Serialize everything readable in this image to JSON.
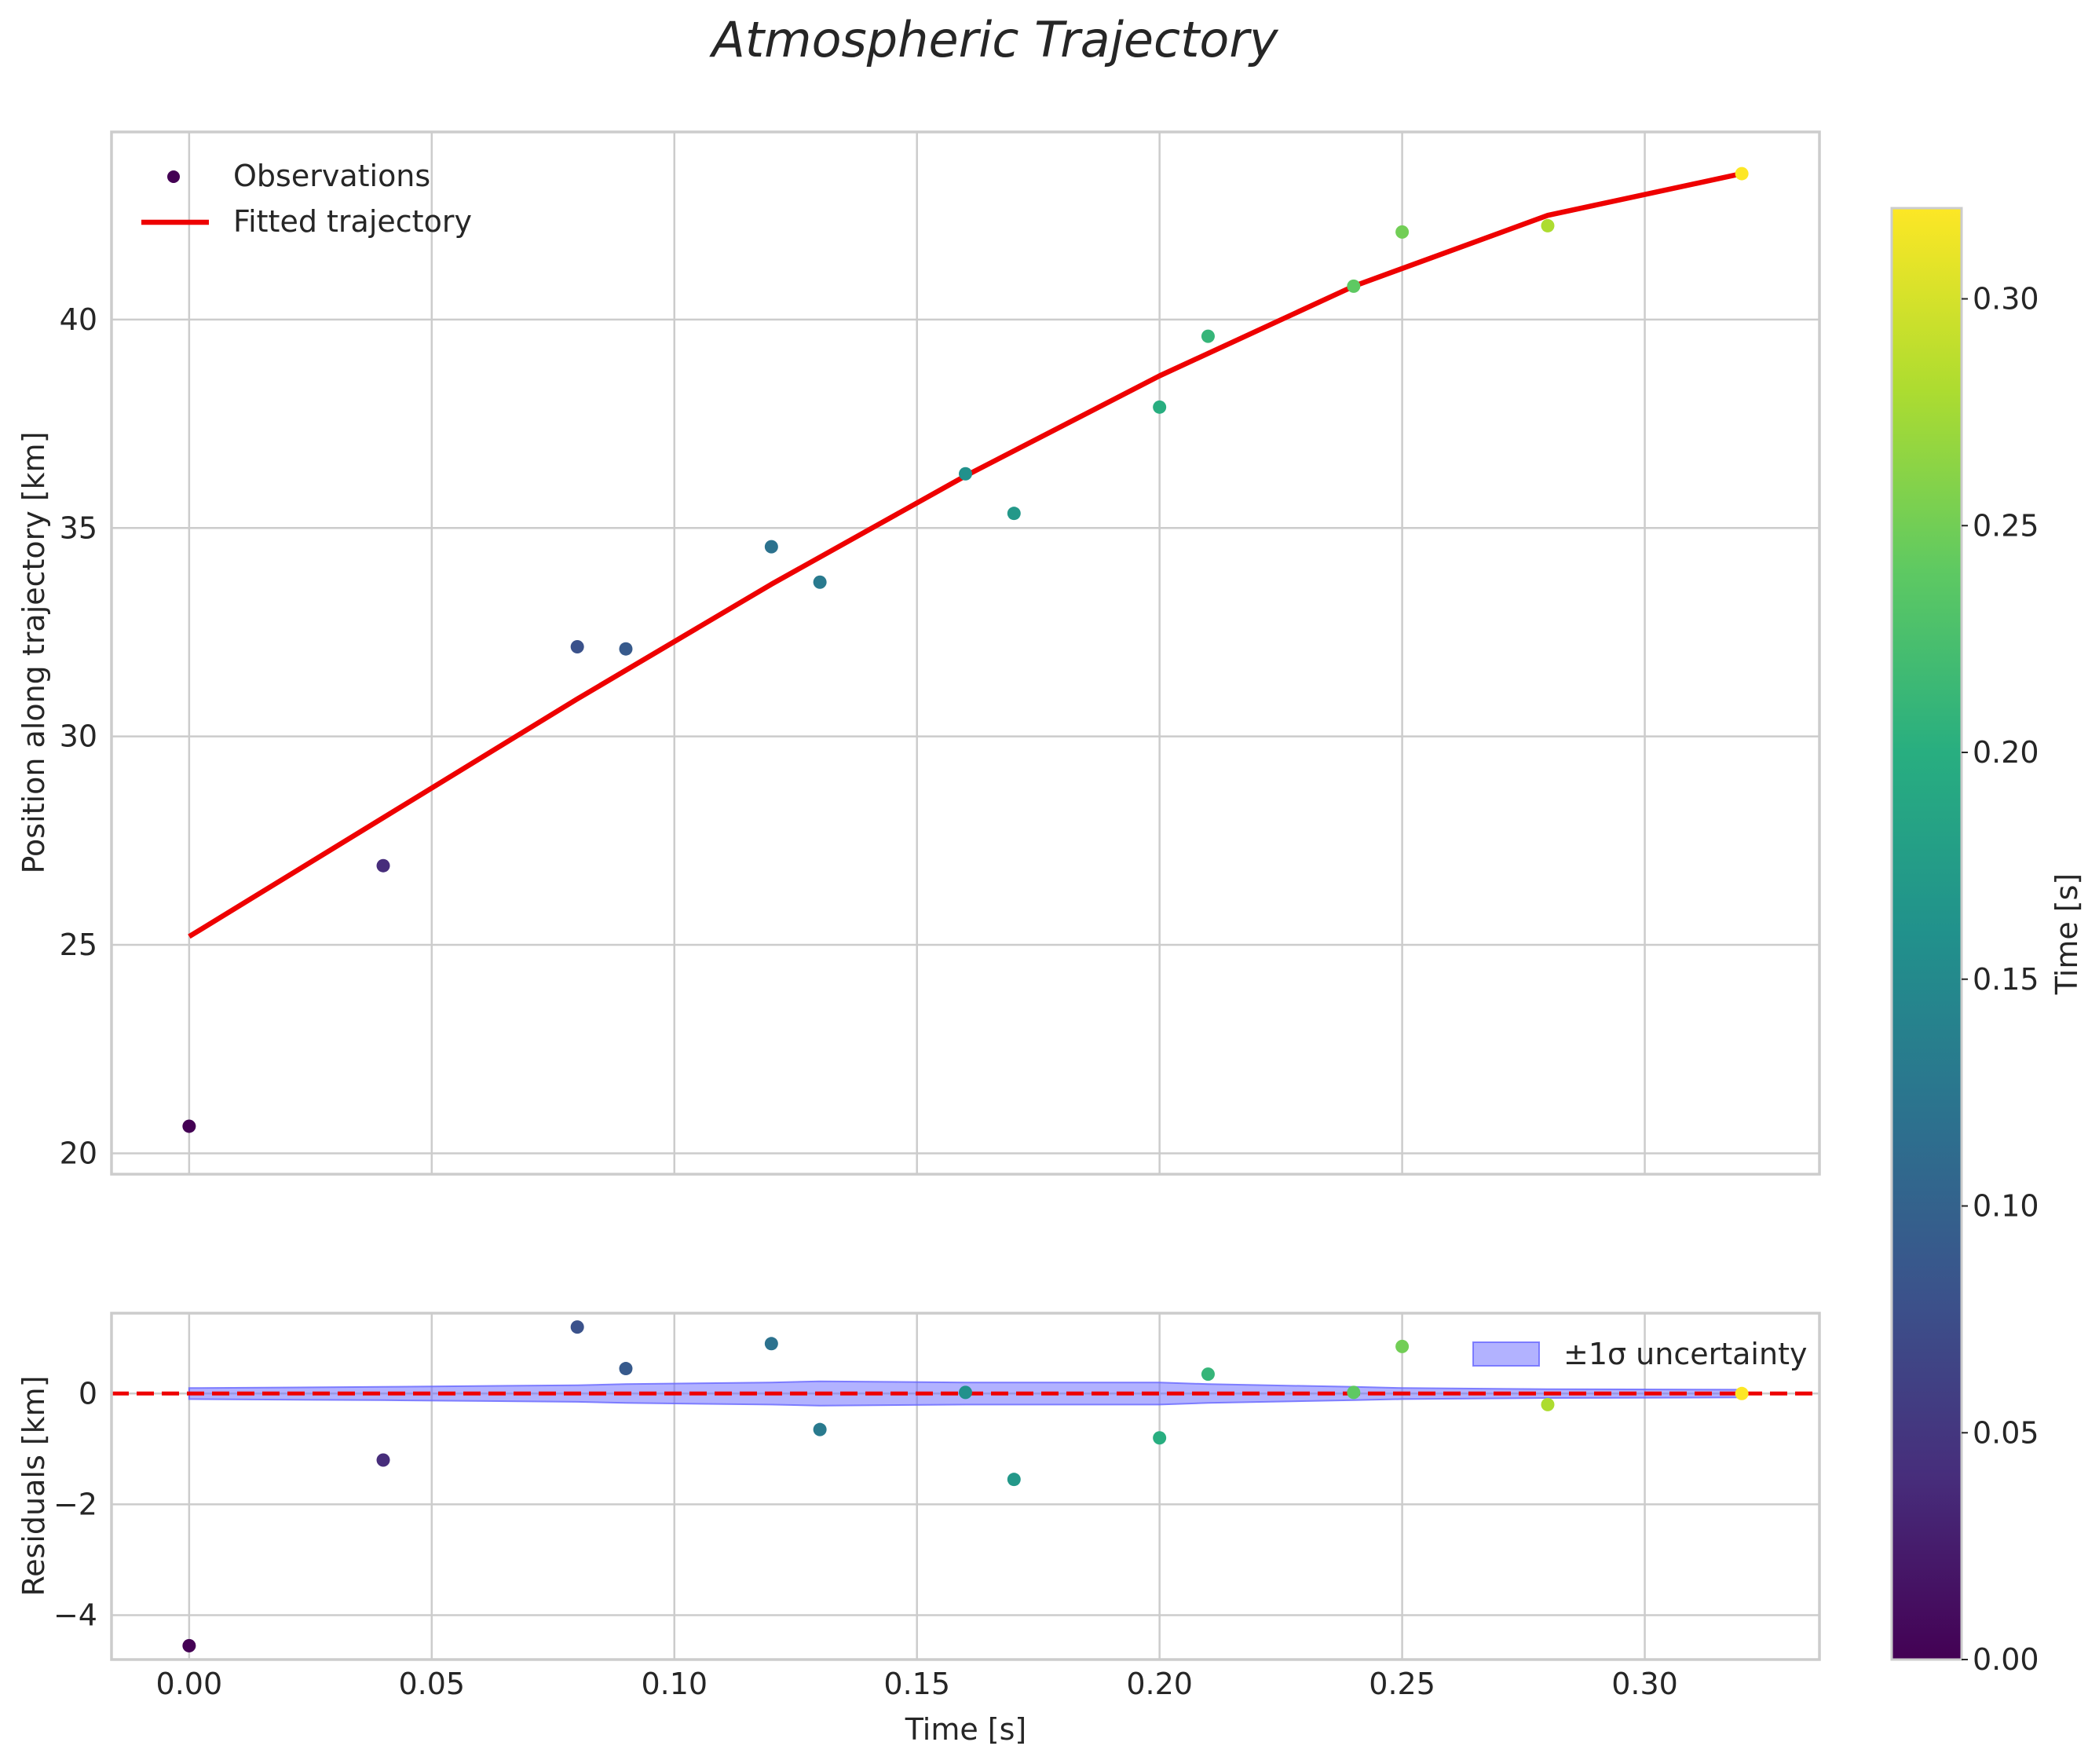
{
  "chart_data": {
    "title": "Atmospheric Trajectory",
    "type": "scatter",
    "shared_x": {
      "label": "Time [s]",
      "lim": [
        -0.016,
        0.336
      ],
      "ticks": [
        0.0,
        0.05,
        0.1,
        0.15,
        0.2,
        0.25,
        0.3
      ],
      "tick_labels": [
        "0.00",
        "0.05",
        "0.10",
        "0.15",
        "0.20",
        "0.25",
        "0.30"
      ]
    },
    "panels": [
      {
        "name": "trajectory",
        "ylabel": "Position along trajectory [km]",
        "ylim": [
          19.5,
          44.5
        ],
        "yticks": [
          20,
          25,
          30,
          35,
          40
        ],
        "ytick_labels": [
          "20",
          "25",
          "30",
          "35",
          "40"
        ],
        "grid": true,
        "legend": {
          "placement": "upper-left",
          "entries": [
            {
              "label": "Observations",
              "kind": "scatter"
            },
            {
              "label": "Fitted trajectory",
              "kind": "line",
              "color": "#ee0000"
            }
          ]
        },
        "observations": {
          "t": [
            0.0,
            0.04,
            0.08,
            0.09,
            0.12,
            0.13,
            0.16,
            0.17,
            0.2,
            0.21,
            0.24,
            0.25,
            0.28,
            0.32
          ],
          "position": [
            20.65,
            26.9,
            32.15,
            32.1,
            34.55,
            33.7,
            36.3,
            35.35,
            37.9,
            39.6,
            40.8,
            42.1,
            42.25,
            43.5
          ]
        },
        "fitted_trajectory": {
          "t": [
            0.0,
            0.04,
            0.08,
            0.12,
            0.16,
            0.2,
            0.24,
            0.28,
            0.32
          ],
          "position": [
            25.2,
            28.05,
            30.9,
            33.65,
            36.25,
            38.65,
            40.8,
            42.5,
            43.5
          ]
        }
      },
      {
        "name": "residuals",
        "ylabel": "Residuals [km]",
        "ylim": [
          -4.8,
          1.45
        ],
        "yticks": [
          -4,
          -2,
          0
        ],
        "ytick_labels": [
          "−4",
          "−2",
          "0"
        ],
        "grid": true,
        "legend": {
          "placement": "upper-right",
          "entries": [
            {
              "label": "±1σ uncertainty",
              "kind": "band",
              "color": "#6666ff"
            }
          ]
        },
        "zero_line": {
          "y": 0,
          "color": "#ee0000",
          "style": "dashed"
        },
        "residuals": [
          -4.55,
          -1.2,
          1.2,
          0.45,
          0.9,
          -0.65,
          0.02,
          -1.55,
          -0.8,
          0.35,
          0.02,
          0.85,
          -0.2,
          0.0
        ],
        "uncertainty_halfwidth": [
          0.1,
          0.12,
          0.15,
          0.17,
          0.2,
          0.22,
          0.2,
          0.2,
          0.2,
          0.17,
          0.12,
          0.1,
          0.08,
          0.07
        ]
      }
    ],
    "colorbar": {
      "label": "Time [s]",
      "colormap": "viridis",
      "range": [
        0.0,
        0.32
      ],
      "ticks": [
        0.0,
        0.05,
        0.1,
        0.15,
        0.2,
        0.25,
        0.3
      ],
      "tick_labels": [
        "0.00",
        "0.05",
        "0.10",
        "0.15",
        "0.20",
        "0.25",
        "0.30"
      ]
    }
  }
}
